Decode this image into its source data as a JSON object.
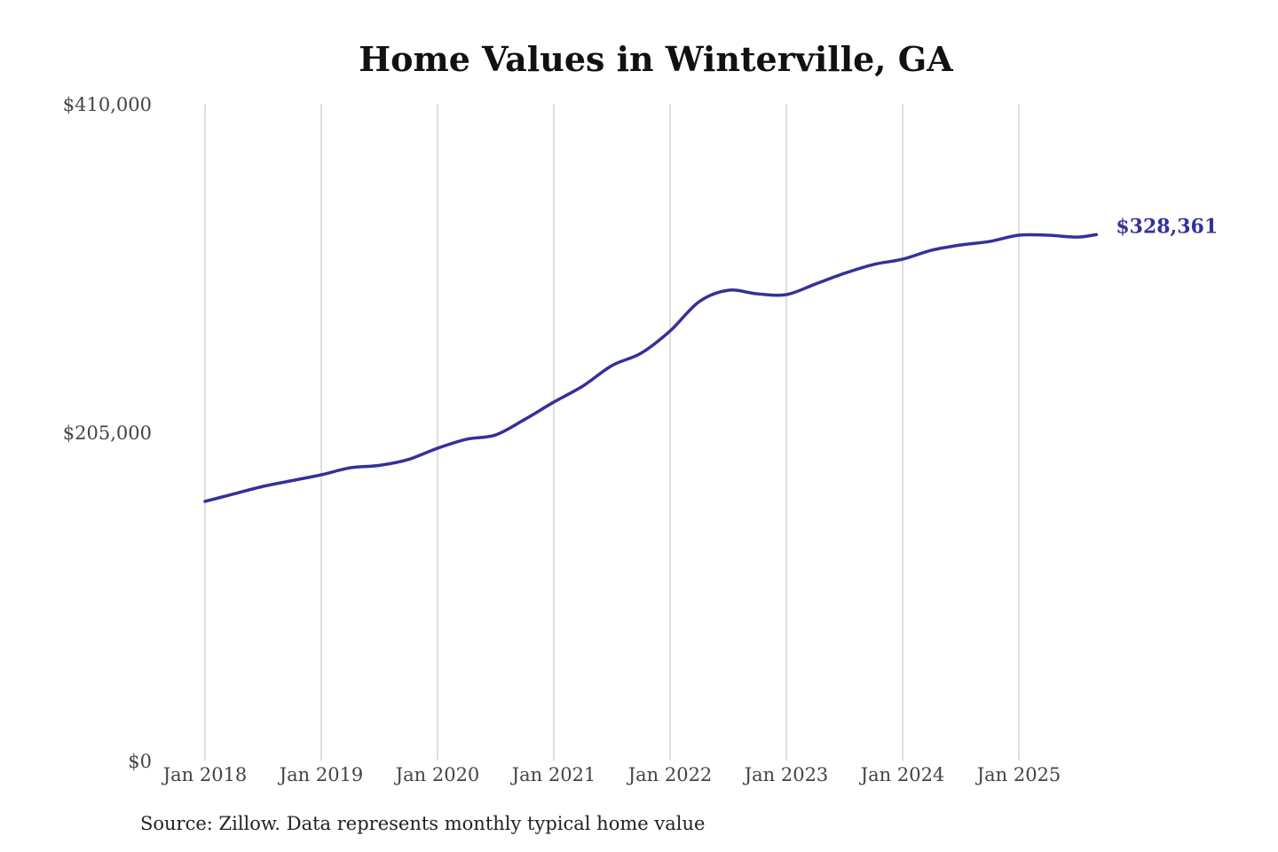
{
  "chart_data": {
    "type": "line",
    "title": "Home Values in Winterville, GA",
    "source": "Source: Zillow. Data represents monthly typical home value",
    "xlabel": "",
    "ylabel": "",
    "ylim": [
      0,
      410000
    ],
    "y_ticks": [
      0,
      205000,
      410000
    ],
    "y_tick_labels": [
      "$0",
      "$205,000",
      "$410,000"
    ],
    "x_ticks": [
      "2018-01",
      "2019-01",
      "2020-01",
      "2021-01",
      "2022-01",
      "2023-01",
      "2024-01",
      "2025-01"
    ],
    "x_tick_labels": [
      "Jan 2018",
      "Jan 2019",
      "Jan 2020",
      "Jan 2021",
      "Jan 2022",
      "Jan 2023",
      "Jan 2024",
      "Jan 2025"
    ],
    "grid": "vertical lines at x ticks",
    "line_color": "#35309a",
    "end_label": "$328,361",
    "x": [
      "2018-01",
      "2018-04",
      "2018-07",
      "2018-10",
      "2019-01",
      "2019-04",
      "2019-07",
      "2019-10",
      "2020-01",
      "2020-04",
      "2020-07",
      "2020-10",
      "2021-01",
      "2021-04",
      "2021-07",
      "2021-10",
      "2022-01",
      "2022-04",
      "2022-07",
      "2022-10",
      "2023-01",
      "2023-04",
      "2023-07",
      "2023-10",
      "2024-01",
      "2024-04",
      "2024-07",
      "2024-10",
      "2025-01",
      "2025-04",
      "2025-07",
      "2025-09"
    ],
    "values": [
      161800,
      166500,
      171200,
      174800,
      178400,
      182800,
      184300,
      188000,
      195000,
      200600,
      203300,
      213000,
      223800,
      233800,
      246600,
      254300,
      268200,
      286500,
      293600,
      291400,
      290900,
      297500,
      304200,
      309700,
      313000,
      318600,
      321900,
      324100,
      328000,
      328000,
      326800,
      328361
    ]
  }
}
